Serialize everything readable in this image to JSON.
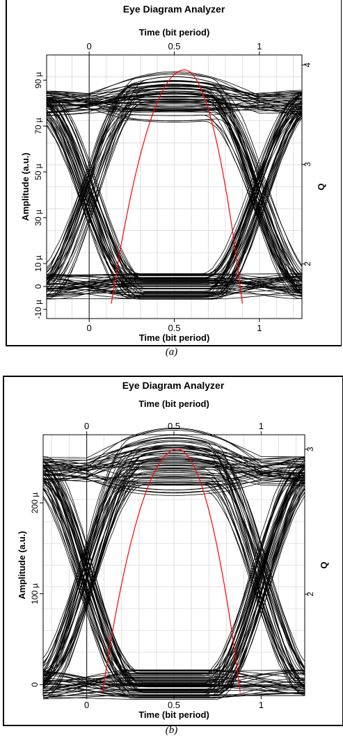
{
  "captions": [
    "(a)",
    "(b)"
  ],
  "chart_data": [
    {
      "type": "line",
      "title": "Eye Diagram Analyzer",
      "xlabel_top": "Time (bit period)",
      "xlabel_bottom": "Time (bit period)",
      "ylabel": "Amplitude (a.u.)",
      "ylabel_right": "Q",
      "xlim": [
        -0.25,
        1.25
      ],
      "ylim": [
        -1.4e-05,
        0.000101
      ],
      "xticks": [
        0,
        0.5,
        1
      ],
      "xtick_labels": [
        "0",
        "0.5",
        "1"
      ],
      "yticks": [
        -1e-05,
        0,
        1e-05,
        3e-05,
        5e-05,
        7e-05,
        9e-05
      ],
      "ytick_labels": [
        "-10 µ",
        "0",
        "10 µ",
        "30 µ",
        "50 µ",
        "70 µ",
        "90 µ"
      ],
      "q_lim": [
        1.45,
        4.1
      ],
      "q_ticks": [
        2,
        3,
        4
      ],
      "q_tick_labels": [
        "2",
        "3",
        "4"
      ],
      "grid": true,
      "eye": {
        "high_level": 8e-05,
        "low_level": 0,
        "crossing_level": 2.5e-05,
        "crossings": [
          0,
          1
        ],
        "eye_opening_center": 0.55
      },
      "q_factor": {
        "peak_x": 0.56,
        "peak_q": 3.95,
        "start_x": 0.13,
        "end_x": 0.9,
        "min_q": 1.6
      },
      "colors": {
        "traces": "#000000",
        "q_curve": "#ff0000",
        "grid": "#cccccc"
      }
    },
    {
      "type": "line",
      "title": "Eye Diagram Analyzer",
      "xlabel_top": "Time (bit period)",
      "xlabel_bottom": "Time (bit period)",
      "ylabel": "Amplitude (a.u.)",
      "ylabel_right": "Q",
      "xlim": [
        -0.25,
        1.25
      ],
      "ylim": [
        -1.2e-05,
        0.000275
      ],
      "xticks": [
        0,
        0.5,
        1
      ],
      "xtick_labels": [
        "0",
        "0.5",
        "1"
      ],
      "yticks": [
        0,
        0.0001,
        0.0002
      ],
      "ytick_labels": [
        "0",
        "100 µ",
        "200 µ"
      ],
      "q_lim": [
        1.3,
        3.1
      ],
      "q_ticks": [
        2,
        3
      ],
      "q_tick_labels": [
        "2",
        "3"
      ],
      "grid": true,
      "eye": {
        "high_level": 0.000235,
        "low_level": 0,
        "crossing_level": 7e-05,
        "crossings": [
          0,
          1
        ],
        "eye_opening_center": 0.5
      },
      "q_factor": {
        "peak_x": 0.52,
        "peak_q": 3.0,
        "start_x": 0.09,
        "end_x": 0.88,
        "min_q": 1.32
      },
      "colors": {
        "traces": "#000000",
        "q_curve": "#ff0000",
        "grid": "#cccccc"
      }
    }
  ]
}
